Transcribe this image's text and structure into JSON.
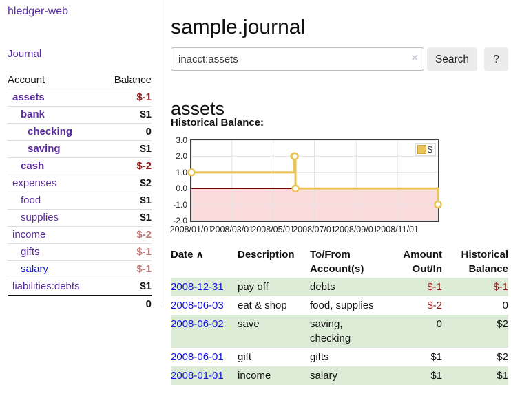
{
  "sidebar": {
    "brand": "hledger-web",
    "nav": {
      "journal": "Journal"
    },
    "table": {
      "account_header": "Account",
      "balance_header": "Balance"
    },
    "accounts": [
      {
        "name": "assets",
        "indent": 1,
        "bold": true,
        "balance": "$-1",
        "balance_style": "neg-strong"
      },
      {
        "name": "bank",
        "indent": 2,
        "bold": true,
        "balance": "$1",
        "balance_style": "pos"
      },
      {
        "name": "checking",
        "indent": 3,
        "bold": true,
        "balance": "0",
        "balance_style": "pos"
      },
      {
        "name": "saving",
        "indent": 3,
        "bold": true,
        "balance": "$1",
        "balance_style": "pos"
      },
      {
        "name": "cash",
        "indent": 2,
        "bold": true,
        "balance": "$-2",
        "balance_style": "neg-strong"
      },
      {
        "name": "expenses",
        "indent": 1,
        "bold": false,
        "balance": "$2",
        "balance_style": "pos"
      },
      {
        "name": "food",
        "indent": 2,
        "bold": false,
        "balance": "$1",
        "balance_style": "pos"
      },
      {
        "name": "supplies",
        "indent": 2,
        "bold": false,
        "balance": "$1",
        "balance_style": "pos"
      },
      {
        "name": "income",
        "indent": 1,
        "bold": false,
        "balance": "$-2",
        "balance_style": "neg-soft"
      },
      {
        "name": "gifts",
        "indent": 2,
        "bold": false,
        "balance": "$-1",
        "balance_style": "neg-soft"
      },
      {
        "name": "salary",
        "indent": 2,
        "bold": false,
        "balance": "$-1",
        "balance_style": "neg-soft"
      },
      {
        "name": "liabilities:debts",
        "indent": 1,
        "bold": false,
        "balance": "$1",
        "balance_style": "pos"
      }
    ],
    "total_balance": "0"
  },
  "main": {
    "title": "sample.journal",
    "search": {
      "value": "inacct:assets",
      "clear_icon": "×",
      "search_button": "Search",
      "help_button": "?"
    },
    "account_heading": "assets",
    "chart_title": "Historical Balance:"
  },
  "chart_data": {
    "type": "line",
    "step": true,
    "title": "Historical Balance",
    "series": [
      {
        "name": "$",
        "points": [
          [
            "2008-01-01",
            1
          ],
          [
            "2008-06-01",
            2
          ],
          [
            "2008-06-02",
            2
          ],
          [
            "2008-06-03",
            0
          ],
          [
            "2008-12-31",
            -1
          ]
        ]
      }
    ],
    "x_range": [
      "2008-01-01",
      "2008-12-31"
    ],
    "x_ticks": [
      "2008/01/01",
      "2008/03/01",
      "2008/05/01",
      "2008/07/01",
      "2008/09/01",
      "2008/11/01"
    ],
    "y_ticks": [
      "3.0",
      "2.0",
      "1.0",
      "0.0",
      "-1.0",
      "-2.0"
    ],
    "ylim": [
      -2,
      3
    ],
    "grid": true,
    "legend": {
      "label": "$",
      "position": "top-right"
    },
    "colors": {
      "line": "#e8c45a",
      "marker_fill": "#ffffff",
      "negative_region": "#fadcdc",
      "zero_line": "#7d0000",
      "grid": "#e2e2e2"
    }
  },
  "register": {
    "headers": {
      "date": "Date",
      "sort_indicator": "∧",
      "description": "Description",
      "accounts": "To/From Account(s)",
      "amount": "Amount Out/In",
      "balance": "Historical Balance"
    },
    "rows": [
      {
        "date": "2008-12-31",
        "description": "pay off",
        "accounts": "debts",
        "amount": "$-1",
        "balance": "$-1",
        "shaded": true
      },
      {
        "date": "2008-06-03",
        "description": "eat & shop",
        "accounts": "food, supplies",
        "amount": "$-2",
        "balance": "0",
        "shaded": false
      },
      {
        "date": "2008-06-02",
        "description": "save",
        "accounts": "saving, checking",
        "amount": "0",
        "balance": "$2",
        "shaded": true
      },
      {
        "date": "2008-06-01",
        "description": "gift",
        "accounts": "gifts",
        "amount": "$1",
        "balance": "$2",
        "shaded": false
      },
      {
        "date": "2008-01-01",
        "description": "income",
        "accounts": "salary",
        "amount": "$1",
        "balance": "$1",
        "shaded": true
      }
    ]
  }
}
